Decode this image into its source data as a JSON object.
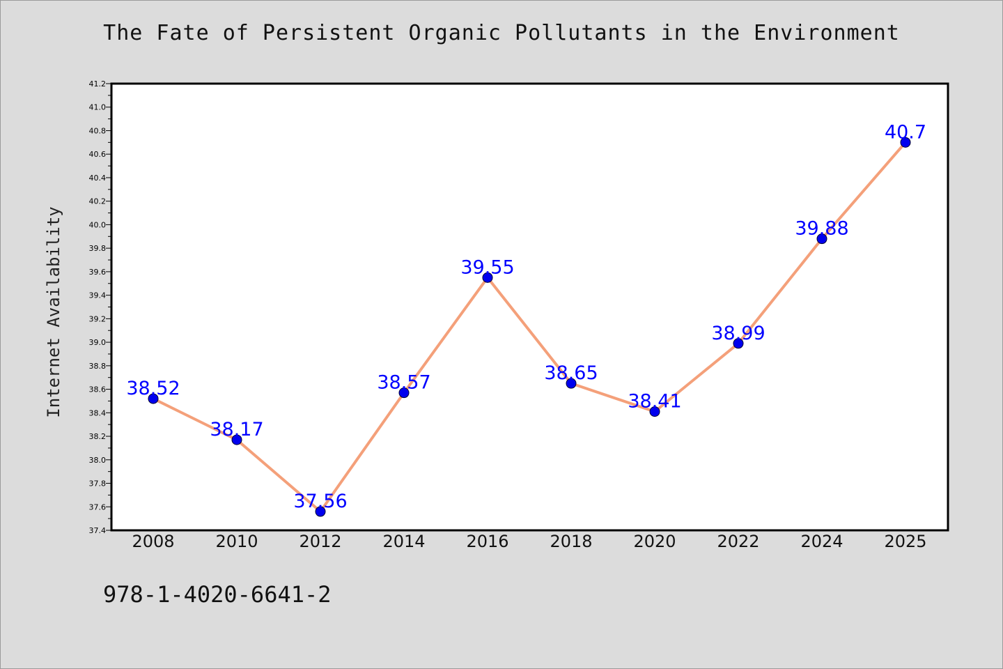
{
  "chart_data": {
    "type": "line",
    "title": "The Fate of Persistent Organic Pollutants in the Environment",
    "xlabel": "",
    "ylabel": "Internet Availability",
    "categories": [
      "2008",
      "2010",
      "2012",
      "2014",
      "2016",
      "2018",
      "2020",
      "2022",
      "2024",
      "2025"
    ],
    "series": [
      {
        "values": [
          38.52,
          38.17,
          37.56,
          38.57,
          39.55,
          38.65,
          38.41,
          38.99,
          39.88,
          40.7
        ]
      }
    ],
    "data_labels": [
      "38.52",
      "38.17",
      "37.56",
      "38.57",
      "39.55",
      "38.65",
      "38.41",
      "38.99",
      "39.88",
      "40.7"
    ],
    "ylim": [
      37.4,
      41.2
    ],
    "yticks": [
      "37.4",
      "37.6",
      "37.8",
      "38.0",
      "38.2",
      "38.4",
      "38.6",
      "38.8",
      "39.0",
      "39.2",
      "39.4",
      "39.6",
      "39.8",
      "40.0",
      "40.2",
      "40.4",
      "40.6",
      "40.8",
      "41.0",
      "41.2"
    ],
    "grid": false,
    "colors": {
      "line": "#f4a07a",
      "marker": "#0000ee",
      "label": "#0000ff",
      "background": "#dcdcdc",
      "plot_background": "#ffffff"
    }
  },
  "footer": {
    "code": "978-1-4020-6641-2"
  }
}
